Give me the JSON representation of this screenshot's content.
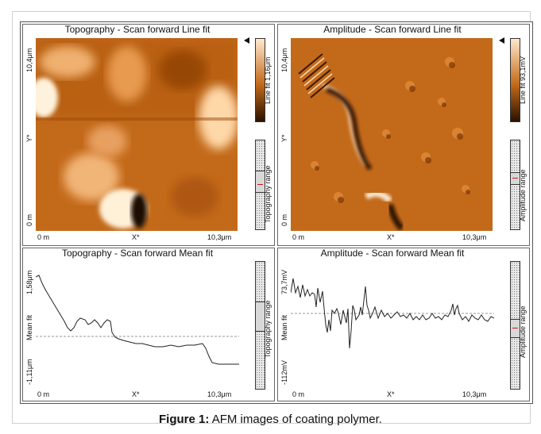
{
  "caption": {
    "label": "Figure 1:",
    "text": " AFM images of coating polymer."
  },
  "panels": {
    "topo_img": {
      "title": "Topography - Scan forward   Line fit",
      "y_top": "10,4μm",
      "y_mid": "Y*",
      "y_bot": "0 m",
      "x_left": "0 m",
      "x_mid": "X*",
      "x_right": "10,3μm",
      "colorbar_label": "Line fit 1,16μm",
      "range_label": "Topography range"
    },
    "amp_img": {
      "title": "Amplitude - Scan forward   Line fit",
      "y_top": "10,4μm",
      "y_mid": "Y*",
      "y_bot": "0 m",
      "x_left": "0 m",
      "x_mid": "X*",
      "x_right": "10,3μm",
      "colorbar_label": "Line fit 93,1mV",
      "range_label": "Amplitude range"
    },
    "topo_line": {
      "title": "Topography - Scan forward   Mean fit",
      "y_top": "1,58μm",
      "y_mid": "Mean fit",
      "y_bot": "-1,11μm",
      "x_left": "0 m",
      "x_mid": "X*",
      "x_right": "10,3μm",
      "range_label": "Topography range"
    },
    "amp_line": {
      "title": "Amplitude - Scan forward   Mean fit",
      "y_top": "73,7mV",
      "y_mid": "Mean fit",
      "y_bot": "-112mV",
      "x_left": "0 m",
      "x_mid": "X*",
      "x_right": "10,3μm",
      "range_label": "Amplitude range"
    }
  },
  "colors": {
    "afm_orange": "#c36a1a",
    "afm_dark": "#2a1200",
    "afm_light": "#ffe8cc",
    "range_marker": "#dd1111"
  }
}
